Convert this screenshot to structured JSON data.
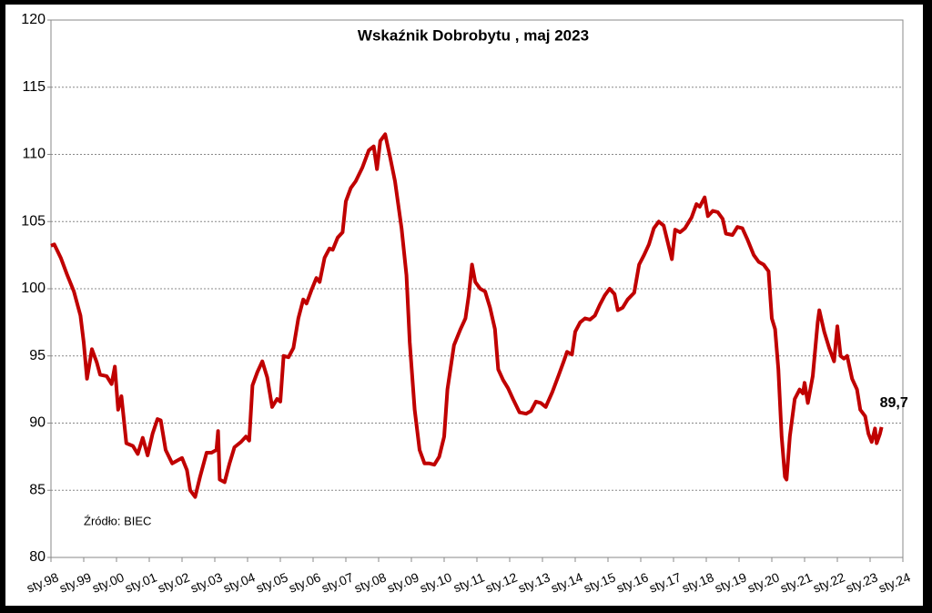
{
  "chart_data": {
    "type": "line",
    "title": "Wskaźnik Dobrobytu , maj 2023",
    "annotation": "Źródło: BIEC",
    "x": [
      1998.0,
      1998.1,
      1998.3,
      1998.5,
      1998.7,
      1998.9,
      1999.0,
      1999.1,
      1999.25,
      1999.4,
      1999.5,
      1999.7,
      1999.85,
      1999.95,
      2000.05,
      2000.15,
      2000.3,
      2000.5,
      2000.65,
      2000.8,
      2000.95,
      2001.1,
      2001.25,
      2001.35,
      2001.5,
      2001.7,
      2001.85,
      2002.0,
      2002.15,
      2002.25,
      2002.4,
      2002.55,
      2002.75,
      2002.9,
      2003.05,
      2003.1,
      2003.15,
      2003.3,
      2003.45,
      2003.6,
      2003.8,
      2003.95,
      2004.05,
      2004.15,
      2004.3,
      2004.45,
      2004.6,
      2004.75,
      2004.9,
      2005.0,
      2005.1,
      2005.25,
      2005.4,
      2005.55,
      2005.7,
      2005.8,
      2005.95,
      2006.1,
      2006.2,
      2006.35,
      2006.5,
      2006.6,
      2006.75,
      2006.9,
      2007.0,
      2007.15,
      2007.3,
      2007.5,
      2007.7,
      2007.85,
      2007.95,
      2008.05,
      2008.2,
      2008.35,
      2008.5,
      2008.7,
      2008.85,
      2008.95,
      2009.1,
      2009.25,
      2009.4,
      2009.55,
      2009.7,
      2009.85,
      2010.0,
      2010.1,
      2010.3,
      2010.5,
      2010.65,
      2010.75,
      2010.85,
      2010.95,
      2011.1,
      2011.25,
      2011.4,
      2011.55,
      2011.65,
      2011.8,
      2011.95,
      2012.1,
      2012.3,
      2012.5,
      2012.65,
      2012.8,
      2012.95,
      2013.1,
      2013.3,
      2013.5,
      2013.65,
      2013.75,
      2013.9,
      2014.0,
      2014.15,
      2014.3,
      2014.45,
      2014.6,
      2014.75,
      2014.9,
      2015.05,
      2015.2,
      2015.3,
      2015.45,
      2015.6,
      2015.8,
      2015.95,
      2016.1,
      2016.25,
      2016.4,
      2016.55,
      2016.7,
      2016.8,
      2016.95,
      2017.05,
      2017.2,
      2017.35,
      2017.55,
      2017.7,
      2017.8,
      2017.95,
      2018.05,
      2018.2,
      2018.35,
      2018.5,
      2018.6,
      2018.8,
      2018.95,
      2019.1,
      2019.25,
      2019.45,
      2019.6,
      2019.75,
      2019.9,
      2020.0,
      2020.1,
      2020.2,
      2020.3,
      2020.4,
      2020.45,
      2020.55,
      2020.7,
      2020.85,
      2020.95,
      2021.0,
      2021.1,
      2021.25,
      2021.4,
      2021.45,
      2021.6,
      2021.75,
      2021.9,
      2022.0,
      2022.1,
      2022.2,
      2022.3,
      2022.45,
      2022.6,
      2022.7,
      2022.85,
      2022.95,
      2023.05,
      2023.15,
      2023.2,
      2023.3,
      2023.35
    ],
    "series": [
      {
        "color": "#c00000",
        "values": [
          103.2,
          103.3,
          102.3,
          101,
          99.8,
          98,
          96,
          93.3,
          95.5,
          94.5,
          93.6,
          93.5,
          92.9,
          94.2,
          91,
          92,
          88.5,
          88.3,
          87.7,
          88.9,
          87.6,
          89.2,
          90.3,
          90.2,
          88,
          87,
          87.2,
          87.4,
          86.5,
          85,
          84.5,
          86,
          87.8,
          87.8,
          88,
          89.4,
          85.8,
          85.6,
          87,
          88.2,
          88.6,
          89,
          88.7,
          92.8,
          93.8,
          94.6,
          93.4,
          91.2,
          91.8,
          91.6,
          95,
          94.9,
          95.6,
          97.8,
          99.2,
          98.9,
          99.9,
          100.8,
          100.5,
          102.3,
          103,
          102.9,
          103.8,
          104.2,
          106.5,
          107.5,
          108,
          109,
          110.3,
          110.6,
          108.9,
          111,
          111.5,
          109.8,
          108,
          104.5,
          101,
          96,
          91,
          88,
          87,
          87,
          86.9,
          87.5,
          89,
          92.5,
          95.8,
          97,
          97.8,
          99.5,
          101.8,
          100.5,
          100,
          99.8,
          98.6,
          97,
          94,
          93.2,
          92.6,
          91.8,
          90.8,
          90.7,
          90.9,
          91.6,
          91.5,
          91.2,
          92.3,
          93.6,
          94.6,
          95.3,
          95.1,
          96.8,
          97.5,
          97.8,
          97.7,
          98,
          98.8,
          99.5,
          100,
          99.6,
          98.4,
          98.6,
          99.2,
          99.7,
          101.8,
          102.5,
          103.3,
          104.5,
          105,
          104.7,
          103.7,
          102.2,
          104.4,
          104.2,
          104.5,
          105.3,
          106.3,
          106.1,
          106.8,
          105.4,
          105.8,
          105.7,
          105.2,
          104.1,
          104,
          104.6,
          104.5,
          103.7,
          102.5,
          102,
          101.8,
          101.3,
          97.8,
          97,
          94,
          89,
          86,
          85.8,
          89,
          91.8,
          92.5,
          92.2,
          93,
          91.5,
          93.5,
          97.5,
          98.4,
          96.8,
          95.6,
          94.6,
          97.2,
          95,
          94.8,
          95,
          93.3,
          92.5,
          91,
          90.5,
          89.2,
          88.6,
          89.6,
          88.5,
          89.2,
          89.7
        ],
        "value_labels": [
          null,
          null,
          null,
          null,
          null,
          null,
          null,
          null,
          null,
          null,
          null,
          null,
          null,
          null,
          null,
          null,
          null,
          null,
          null,
          null,
          null,
          null,
          null,
          null,
          null,
          null,
          null,
          null,
          null,
          null,
          null,
          null,
          null,
          null,
          null,
          null,
          null,
          null,
          null,
          null,
          null,
          null,
          null,
          null,
          null,
          null,
          null,
          null,
          null,
          null,
          null,
          null,
          null,
          null,
          null,
          null,
          null,
          null,
          null,
          null,
          null,
          null,
          null,
          null,
          null,
          null,
          null,
          null,
          null,
          null,
          null,
          null,
          null,
          null,
          null,
          null,
          null,
          null,
          null,
          null,
          null,
          null,
          null,
          null,
          null,
          null,
          null,
          null,
          null,
          null,
          null,
          null,
          null,
          null,
          null,
          null,
          null,
          null,
          null,
          null,
          null,
          null,
          null,
          null,
          null,
          null,
          null,
          null,
          null,
          null,
          null,
          null,
          null,
          null,
          null,
          null,
          null,
          null,
          null,
          null,
          null,
          null,
          null,
          null,
          null,
          null,
          null,
          null,
          null,
          null,
          null,
          null,
          null,
          null,
          null,
          null,
          null,
          null,
          null,
          null,
          null,
          null,
          null,
          null,
          null,
          null,
          null,
          null,
          null,
          null,
          null,
          null,
          null,
          null,
          null,
          null,
          null,
          null,
          null,
          null,
          null,
          null,
          null,
          null,
          null,
          null,
          null,
          null,
          null,
          null,
          null,
          null,
          null,
          null,
          null,
          null,
          null,
          null,
          null,
          null,
          null,
          null,
          null,
          "89,7"
        ]
      }
    ],
    "xlim": [
      1998,
      2024
    ],
    "xticks": [
      {
        "value": 1998,
        "label": "sty.98"
      },
      {
        "value": 1999,
        "label": "sty.99"
      },
      {
        "value": 2000,
        "label": "sty.00"
      },
      {
        "value": 2001,
        "label": "sty.01"
      },
      {
        "value": 2002,
        "label": "sty.02"
      },
      {
        "value": 2003,
        "label": "sty.03"
      },
      {
        "value": 2004,
        "label": "sty.04"
      },
      {
        "value": 2005,
        "label": "sty.05"
      },
      {
        "value": 2006,
        "label": "sty.06"
      },
      {
        "value": 2007,
        "label": "sty.07"
      },
      {
        "value": 2008,
        "label": "sty.08"
      },
      {
        "value": 2009,
        "label": "sty.09"
      },
      {
        "value": 2010,
        "label": "sty.10"
      },
      {
        "value": 2011,
        "label": "sty.11"
      },
      {
        "value": 2012,
        "label": "sty.12"
      },
      {
        "value": 2013,
        "label": "sty.13"
      },
      {
        "value": 2014,
        "label": "sty.14"
      },
      {
        "value": 2015,
        "label": "sty.15"
      },
      {
        "value": 2016,
        "label": "sty.16"
      },
      {
        "value": 2017,
        "label": "sty.17"
      },
      {
        "value": 2018,
        "label": "sty.18"
      },
      {
        "value": 2019,
        "label": "sty.19"
      },
      {
        "value": 2020,
        "label": "sty.20"
      },
      {
        "value": 2021,
        "label": "sty.21"
      },
      {
        "value": 2022,
        "label": "sty.22"
      },
      {
        "value": 2023,
        "label": "sty.23"
      },
      {
        "value": 2024,
        "label": "sty.24"
      }
    ],
    "ylim": [
      80,
      120
    ],
    "yticks": [
      80,
      85,
      90,
      95,
      100,
      105,
      110,
      115,
      120
    ],
    "grid": true
  }
}
